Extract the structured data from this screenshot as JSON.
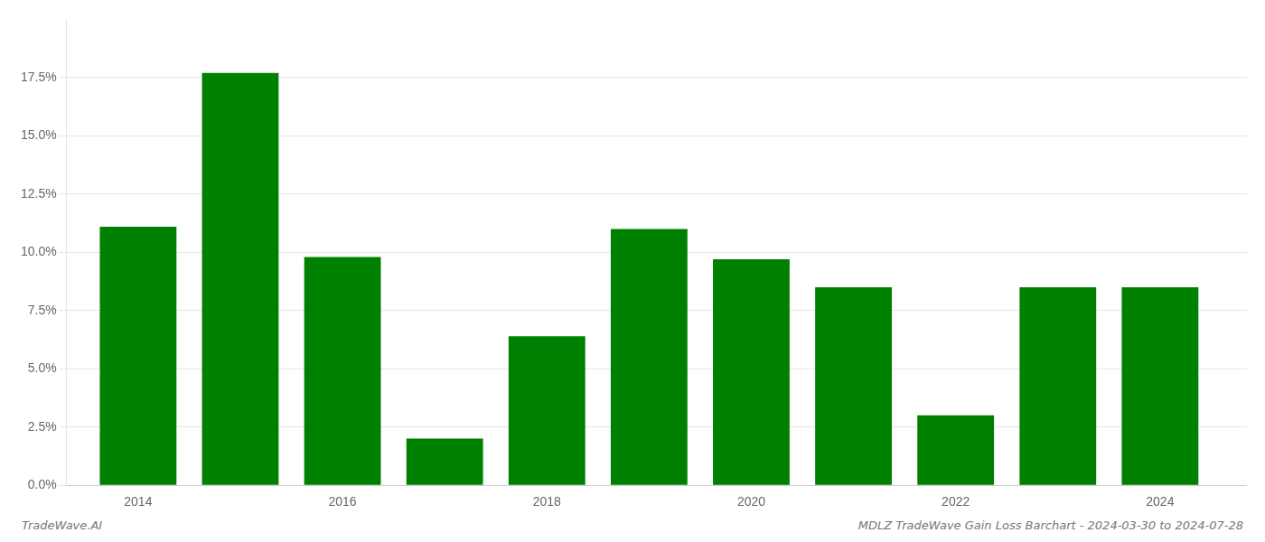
{
  "chart_data": {
    "type": "bar",
    "x": [
      2014,
      2015,
      2016,
      2017,
      2018,
      2019,
      2020,
      2021,
      2022,
      2023,
      2024
    ],
    "values": [
      0.111,
      0.177,
      0.098,
      0.02,
      0.064,
      0.11,
      0.097,
      0.085,
      0.03,
      0.085,
      0.085
    ],
    "color": "#008000",
    "xlim": [
      2013.3,
      2024.85
    ],
    "xticks": [
      2014,
      2016,
      2018,
      2020,
      2022,
      2024
    ],
    "ylim": [
      0,
      0.2
    ],
    "yticks": [
      {
        "value": 0.0,
        "label": "0.0%"
      },
      {
        "value": 0.025,
        "label": "2.5%"
      },
      {
        "value": 0.05,
        "label": "5.0%"
      },
      {
        "value": 0.075,
        "label": "7.5%"
      },
      {
        "value": 0.1,
        "label": "10.0%"
      },
      {
        "value": 0.125,
        "label": "12.5%"
      },
      {
        "value": 0.15,
        "label": "15.0%"
      },
      {
        "value": 0.175,
        "label": "17.5%"
      }
    ],
    "grid": true,
    "annotations": [
      "TradeWave.AI",
      "MDLZ TradeWave Gain Loss Barchart - 2024-03-30 to 2024-07-28"
    ]
  }
}
